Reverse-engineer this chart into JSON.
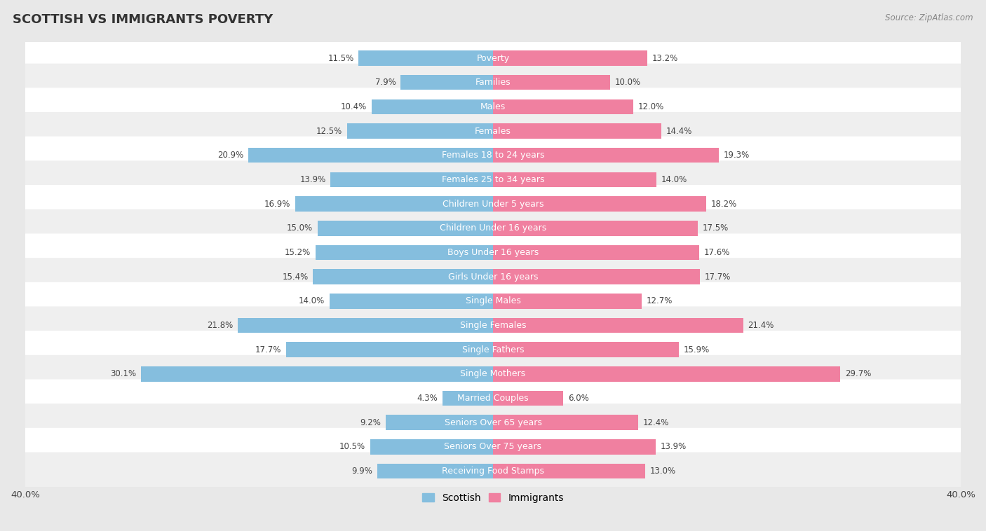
{
  "title": "SCOTTISH VS IMMIGRANTS POVERTY",
  "source": "Source: ZipAtlas.com",
  "categories": [
    "Poverty",
    "Families",
    "Males",
    "Females",
    "Females 18 to 24 years",
    "Females 25 to 34 years",
    "Children Under 5 years",
    "Children Under 16 years",
    "Boys Under 16 years",
    "Girls Under 16 years",
    "Single Males",
    "Single Females",
    "Single Fathers",
    "Single Mothers",
    "Married Couples",
    "Seniors Over 65 years",
    "Seniors Over 75 years",
    "Receiving Food Stamps"
  ],
  "scottish": [
    11.5,
    7.9,
    10.4,
    12.5,
    20.9,
    13.9,
    16.9,
    15.0,
    15.2,
    15.4,
    14.0,
    21.8,
    17.7,
    30.1,
    4.3,
    9.2,
    10.5,
    9.9
  ],
  "immigrants": [
    13.2,
    10.0,
    12.0,
    14.4,
    19.3,
    14.0,
    18.2,
    17.5,
    17.6,
    17.7,
    12.7,
    21.4,
    15.9,
    29.7,
    6.0,
    12.4,
    13.9,
    13.0
  ],
  "scottish_color": "#85bede",
  "immigrants_color": "#f080a0",
  "row_bg_white": "#ffffff",
  "row_bg_gray": "#efefef",
  "fig_bg_color": "#e8e8e8",
  "axis_max": 40.0,
  "bar_height": 0.62,
  "title_fontsize": 13,
  "label_fontsize": 9,
  "value_fontsize": 8.5,
  "legend_fontsize": 10,
  "legend_square_color_scottish": "#85bede",
  "legend_square_color_immigrants": "#f080a0"
}
